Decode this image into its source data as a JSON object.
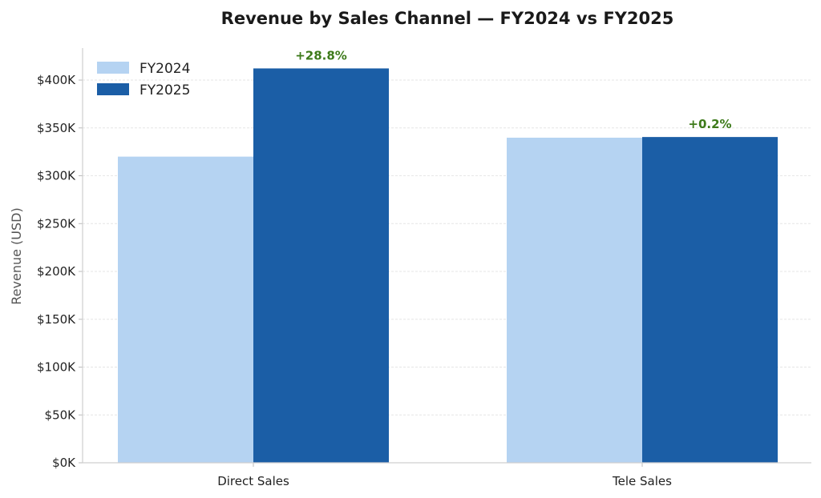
{
  "chart_data": {
    "type": "bar",
    "title": "Revenue by Sales Channel — FY2024 vs FY2025",
    "xlabel": "",
    "ylabel": "Revenue (USD)",
    "categories": [
      "Direct Sales",
      "Tele Sales"
    ],
    "series": [
      {
        "name": "FY2024",
        "values": [
          320000,
          339800
        ],
        "color": "#b5d3f2"
      },
      {
        "name": "FY2025",
        "values": [
          412200,
          340500
        ],
        "color": "#1b5ea6"
      }
    ],
    "annotations": [
      "+28.8%",
      "+0.2%"
    ],
    "annotation_color": "#3d7a1a",
    "ylim": [
      0,
      433500
    ],
    "yticks": [
      0,
      50000,
      100000,
      150000,
      200000,
      250000,
      300000,
      350000,
      400000
    ],
    "ytick_labels": [
      "$0K",
      "$50K",
      "$100K",
      "$150K",
      "$200K",
      "$250K",
      "$300K",
      "$350K",
      "$400K"
    ],
    "grid": true,
    "legend": "top-left"
  }
}
